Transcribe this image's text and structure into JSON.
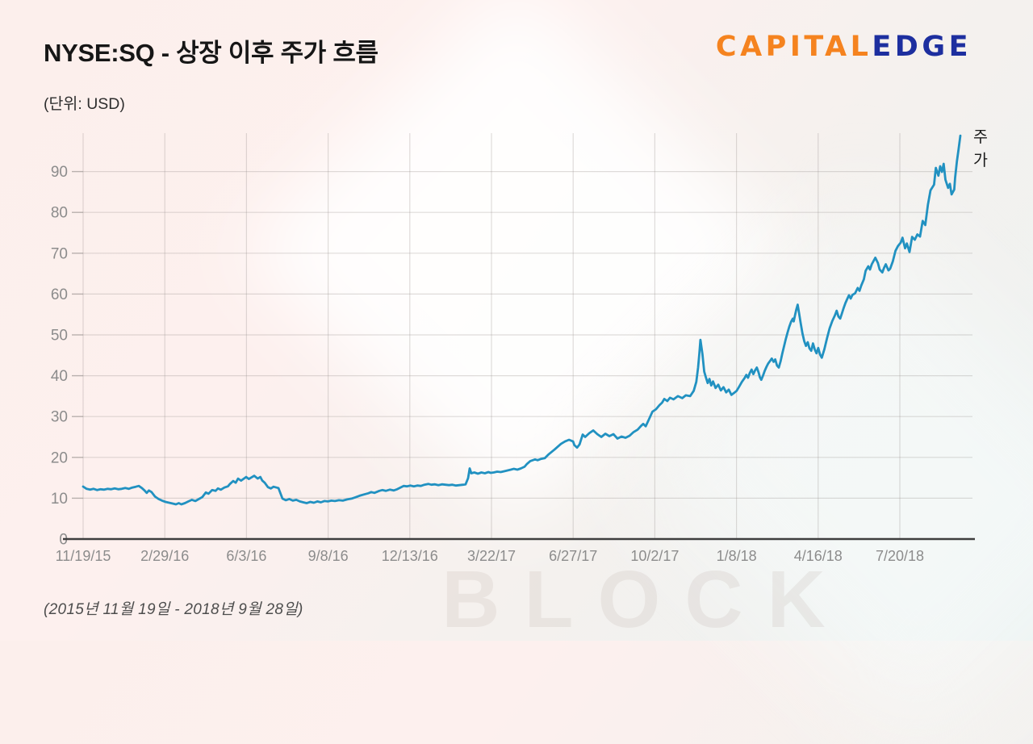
{
  "header": {
    "title": "NYSE:SQ - 상장 이후 주가 흐름",
    "subtitle": "(단위: USD)",
    "logo": {
      "part1": "CAPITAL",
      "part2": "EDGE",
      "part1_color": "#f5831f",
      "part2_color": "#1d2f9f"
    }
  },
  "footer": {
    "period": "(2015년 11월 19일 - 2018년 9월 28일)"
  },
  "watermark": {
    "text": "BLOCK"
  },
  "chart_data": {
    "type": "line",
    "title": "NYSE:SQ - 상장 이후 주가 흐름",
    "unit_label": "(단위: USD)",
    "series_label": "주가",
    "line_color": "#2191c1",
    "grid": true,
    "legend_position": "right-of-line-end",
    "x_tick_labels": [
      "11/19/15",
      "2/29/16",
      "6/3/16",
      "9/8/16",
      "12/13/16",
      "3/22/17",
      "6/27/17",
      "10/2/17",
      "1/8/18",
      "4/16/18",
      "7/20/18"
    ],
    "x_range": [
      "2015-11-19",
      "2018-09-28"
    ],
    "y_ticks": [
      0,
      10,
      20,
      30,
      40,
      50,
      60,
      70,
      80,
      90
    ],
    "ylim": [
      0,
      100
    ],
    "points": [
      [
        0.0,
        12.85
      ],
      [
        0.004,
        12.3
      ],
      [
        0.008,
        12.1
      ],
      [
        0.012,
        12.3
      ],
      [
        0.016,
        12.0
      ],
      [
        0.02,
        12.2
      ],
      [
        0.024,
        12.1
      ],
      [
        0.028,
        12.3
      ],
      [
        0.032,
        12.2
      ],
      [
        0.036,
        12.4
      ],
      [
        0.04,
        12.2
      ],
      [
        0.044,
        12.3
      ],
      [
        0.048,
        12.5
      ],
      [
        0.052,
        12.3
      ],
      [
        0.056,
        12.6
      ],
      [
        0.06,
        12.8
      ],
      [
        0.0635,
        13.0
      ],
      [
        0.067,
        12.5
      ],
      [
        0.07,
        11.9
      ],
      [
        0.0725,
        11.3
      ],
      [
        0.075,
        11.9
      ],
      [
        0.078,
        11.5
      ],
      [
        0.082,
        10.4
      ],
      [
        0.086,
        9.8
      ],
      [
        0.09,
        9.4
      ],
      [
        0.094,
        9.1
      ],
      [
        0.098,
        8.9
      ],
      [
        0.102,
        8.7
      ],
      [
        0.1058,
        8.5
      ],
      [
        0.109,
        8.8
      ],
      [
        0.112,
        8.5
      ],
      [
        0.116,
        8.8
      ],
      [
        0.12,
        9.2
      ],
      [
        0.124,
        9.6
      ],
      [
        0.128,
        9.3
      ],
      [
        0.132,
        9.8
      ],
      [
        0.136,
        10.3
      ],
      [
        0.1398,
        11.4
      ],
      [
        0.143,
        11.1
      ],
      [
        0.147,
        12.0
      ],
      [
        0.151,
        11.8
      ],
      [
        0.1536,
        12.4
      ],
      [
        0.157,
        12.1
      ],
      [
        0.161,
        12.6
      ],
      [
        0.165,
        12.9
      ],
      [
        0.1674,
        13.5
      ],
      [
        0.171,
        14.2
      ],
      [
        0.174,
        13.8
      ],
      [
        0.1766,
        14.8
      ],
      [
        0.18,
        14.3
      ],
      [
        0.1858,
        15.2
      ],
      [
        0.189,
        14.7
      ],
      [
        0.195,
        15.5
      ],
      [
        0.199,
        14.8
      ],
      [
        0.202,
        15.2
      ],
      [
        0.2042,
        14.3
      ],
      [
        0.207,
        13.8
      ],
      [
        0.2107,
        12.7
      ],
      [
        0.214,
        12.4
      ],
      [
        0.217,
        12.8
      ],
      [
        0.2226,
        12.5
      ],
      [
        0.2272,
        9.9
      ],
      [
        0.231,
        9.5
      ],
      [
        0.235,
        9.8
      ],
      [
        0.239,
        9.4
      ],
      [
        0.243,
        9.6
      ],
      [
        0.247,
        9.2
      ],
      [
        0.251,
        9.0
      ],
      [
        0.2548,
        8.8
      ],
      [
        0.259,
        9.1
      ],
      [
        0.263,
        8.9
      ],
      [
        0.267,
        9.2
      ],
      [
        0.271,
        9.0
      ],
      [
        0.275,
        9.3
      ],
      [
        0.279,
        9.2
      ],
      [
        0.283,
        9.4
      ],
      [
        0.287,
        9.3
      ],
      [
        0.2916,
        9.5
      ],
      [
        0.296,
        9.4
      ],
      [
        0.301,
        9.7
      ],
      [
        0.306,
        9.9
      ],
      [
        0.31,
        10.2
      ],
      [
        0.315,
        10.6
      ],
      [
        0.32,
        10.9
      ],
      [
        0.325,
        11.2
      ],
      [
        0.3284,
        11.5
      ],
      [
        0.332,
        11.3
      ],
      [
        0.3376,
        11.8
      ],
      [
        0.341,
        12.0
      ],
      [
        0.345,
        11.8
      ],
      [
        0.3496,
        12.1
      ],
      [
        0.354,
        11.9
      ],
      [
        0.358,
        12.2
      ],
      [
        0.3653,
        13.0
      ],
      [
        0.369,
        12.9
      ],
      [
        0.373,
        13.1
      ],
      [
        0.377,
        12.9
      ],
      [
        0.381,
        13.1
      ],
      [
        0.385,
        13.0
      ],
      [
        0.389,
        13.3
      ],
      [
        0.3935,
        13.5
      ],
      [
        0.397,
        13.3
      ],
      [
        0.401,
        13.4
      ],
      [
        0.405,
        13.2
      ],
      [
        0.409,
        13.4
      ],
      [
        0.413,
        13.3
      ],
      [
        0.417,
        13.2
      ],
      [
        0.421,
        13.3
      ],
      [
        0.425,
        13.1
      ],
      [
        0.429,
        13.2
      ],
      [
        0.433,
        13.3
      ],
      [
        0.436,
        13.4
      ],
      [
        0.4388,
        14.9
      ],
      [
        0.4407,
        17.3
      ],
      [
        0.4425,
        16.1
      ],
      [
        0.446,
        16.3
      ],
      [
        0.45,
        16.0
      ],
      [
        0.454,
        16.3
      ],
      [
        0.458,
        16.1
      ],
      [
        0.462,
        16.4
      ],
      [
        0.4646,
        16.2
      ],
      [
        0.468,
        16.3
      ],
      [
        0.472,
        16.5
      ],
      [
        0.476,
        16.4
      ],
      [
        0.48,
        16.6
      ],
      [
        0.4876,
        17.0
      ],
      [
        0.491,
        17.2
      ],
      [
        0.495,
        17.0
      ],
      [
        0.499,
        17.3
      ],
      [
        0.5032,
        17.7
      ],
      [
        0.506,
        18.4
      ],
      [
        0.5097,
        19.1
      ],
      [
        0.5152,
        19.5
      ],
      [
        0.518,
        19.3
      ],
      [
        0.5217,
        19.6
      ],
      [
        0.5263,
        19.8
      ],
      [
        0.5309,
        20.8
      ],
      [
        0.5373,
        21.9
      ],
      [
        0.5447,
        23.3
      ],
      [
        0.5493,
        23.9
      ],
      [
        0.5539,
        24.3
      ],
      [
        0.5585,
        23.9
      ],
      [
        0.56,
        23.0
      ],
      [
        0.5631,
        22.4
      ],
      [
        0.566,
        23.2
      ],
      [
        0.5695,
        25.6
      ],
      [
        0.5723,
        25.0
      ],
      [
        0.5769,
        25.9
      ],
      [
        0.5815,
        26.6
      ],
      [
        0.5861,
        25.7
      ],
      [
        0.5907,
        25.0
      ],
      [
        0.5953,
        25.8
      ],
      [
        0.5999,
        25.2
      ],
      [
        0.6045,
        25.7
      ],
      [
        0.6091,
        24.6
      ],
      [
        0.6137,
        25.1
      ],
      [
        0.6183,
        24.8
      ],
      [
        0.6229,
        25.3
      ],
      [
        0.6275,
        26.2
      ],
      [
        0.6321,
        26.8
      ],
      [
        0.636,
        27.7
      ],
      [
        0.6385,
        28.2
      ],
      [
        0.6413,
        27.6
      ],
      [
        0.645,
        29.3
      ],
      [
        0.649,
        31.2
      ],
      [
        0.6531,
        31.8
      ],
      [
        0.657,
        32.8
      ],
      [
        0.66,
        33.4
      ],
      [
        0.6625,
        34.3
      ],
      [
        0.666,
        33.8
      ],
      [
        0.669,
        34.6
      ],
      [
        0.673,
        34.2
      ],
      [
        0.678,
        35.0
      ],
      [
        0.683,
        34.5
      ],
      [
        0.687,
        35.2
      ],
      [
        0.692,
        35.0
      ],
      [
        0.696,
        36.3
      ],
      [
        0.699,
        38.5
      ],
      [
        0.701,
        42.0
      ],
      [
        0.7025,
        45.5
      ],
      [
        0.7037,
        48.8
      ],
      [
        0.706,
        45.3
      ],
      [
        0.708,
        41.0
      ],
      [
        0.71,
        39.5
      ],
      [
        0.712,
        38.2
      ],
      [
        0.714,
        39.2
      ],
      [
        0.716,
        37.6
      ],
      [
        0.718,
        38.6
      ],
      [
        0.721,
        37.0
      ],
      [
        0.724,
        37.8
      ],
      [
        0.727,
        36.4
      ],
      [
        0.73,
        37.2
      ],
      [
        0.733,
        35.9
      ],
      [
        0.736,
        36.6
      ],
      [
        0.739,
        35.3
      ],
      [
        0.742,
        35.8
      ],
      [
        0.745,
        36.3
      ],
      [
        0.748,
        37.4
      ],
      [
        0.751,
        38.5
      ],
      [
        0.754,
        39.4
      ],
      [
        0.756,
        40.2
      ],
      [
        0.758,
        39.5
      ],
      [
        0.76,
        40.7
      ],
      [
        0.762,
        41.5
      ],
      [
        0.764,
        40.4
      ],
      [
        0.766,
        41.3
      ],
      [
        0.768,
        42.0
      ],
      [
        0.77,
        40.8
      ],
      [
        0.7715,
        39.6
      ],
      [
        0.773,
        39.0
      ],
      [
        0.775,
        40.0
      ],
      [
        0.777,
        41.2
      ],
      [
        0.779,
        42.2
      ],
      [
        0.781,
        43.0
      ],
      [
        0.783,
        43.6
      ],
      [
        0.785,
        44.2
      ],
      [
        0.787,
        43.4
      ],
      [
        0.789,
        44.0
      ],
      [
        0.791,
        42.5
      ],
      [
        0.793,
        42.0
      ],
      [
        0.795,
        43.5
      ],
      [
        0.797,
        45.4
      ],
      [
        0.799,
        47.2
      ],
      [
        0.801,
        49.0
      ],
      [
        0.803,
        50.6
      ],
      [
        0.805,
        52.0
      ],
      [
        0.807,
        53.2
      ],
      [
        0.809,
        54.0
      ],
      [
        0.81,
        53.3
      ],
      [
        0.8115,
        54.8
      ],
      [
        0.813,
        56.2
      ],
      [
        0.8145,
        57.4
      ],
      [
        0.816,
        55.5
      ],
      [
        0.818,
        52.8
      ],
      [
        0.82,
        50.4
      ],
      [
        0.822,
        48.5
      ],
      [
        0.824,
        47.3
      ],
      [
        0.826,
        48.2
      ],
      [
        0.828,
        46.7
      ],
      [
        0.83,
        46.1
      ],
      [
        0.832,
        47.9
      ],
      [
        0.834,
        46.4
      ],
      [
        0.836,
        45.5
      ],
      [
        0.838,
        46.8
      ],
      [
        0.84,
        45.2
      ],
      [
        0.842,
        44.4
      ],
      [
        0.845,
        46.5
      ],
      [
        0.848,
        49.2
      ],
      [
        0.851,
        51.6
      ],
      [
        0.854,
        53.4
      ],
      [
        0.857,
        54.8
      ],
      [
        0.859,
        55.9
      ],
      [
        0.861,
        54.5
      ],
      [
        0.863,
        54.0
      ],
      [
        0.865,
        55.3
      ],
      [
        0.867,
        56.6
      ],
      [
        0.869,
        57.8
      ],
      [
        0.871,
        58.8
      ],
      [
        0.873,
        59.7
      ],
      [
        0.875,
        58.9
      ],
      [
        0.877,
        59.8
      ],
      [
        0.88,
        60.2
      ],
      [
        0.883,
        61.5
      ],
      [
        0.885,
        60.8
      ],
      [
        0.887,
        62.1
      ],
      [
        0.89,
        63.6
      ],
      [
        0.892,
        65.7
      ],
      [
        0.895,
        66.8
      ],
      [
        0.897,
        66.0
      ],
      [
        0.899,
        67.3
      ],
      [
        0.903,
        68.9
      ],
      [
        0.906,
        67.6
      ],
      [
        0.908,
        66.0
      ],
      [
        0.911,
        65.3
      ],
      [
        0.913,
        66.4
      ],
      [
        0.915,
        67.3
      ],
      [
        0.918,
        65.8
      ],
      [
        0.92,
        66.2
      ],
      [
        0.923,
        68.0
      ],
      [
        0.926,
        70.6
      ],
      [
        0.929,
        71.8
      ],
      [
        0.932,
        72.6
      ],
      [
        0.934,
        73.8
      ],
      [
        0.937,
        71.2
      ],
      [
        0.939,
        72.4
      ],
      [
        0.942,
        70.3
      ],
      [
        0.945,
        74.0
      ],
      [
        0.948,
        73.3
      ],
      [
        0.951,
        74.6
      ],
      [
        0.954,
        74.1
      ],
      [
        0.957,
        77.9
      ],
      [
        0.96,
        76.9
      ],
      [
        0.963,
        81.9
      ],
      [
        0.966,
        85.4
      ],
      [
        0.97,
        86.8
      ],
      [
        0.972,
        90.9
      ],
      [
        0.975,
        89.0
      ],
      [
        0.977,
        91.3
      ],
      [
        0.979,
        89.9
      ],
      [
        0.981,
        91.9
      ],
      [
        0.983,
        88.0
      ],
      [
        0.986,
        86.0
      ],
      [
        0.988,
        87.0
      ],
      [
        0.99,
        84.4
      ],
      [
        0.993,
        85.6
      ],
      [
        0.994,
        88.5
      ],
      [
        0.996,
        92.5
      ],
      [
        0.998,
        95.5
      ],
      [
        1.0,
        98.8
      ]
    ]
  }
}
